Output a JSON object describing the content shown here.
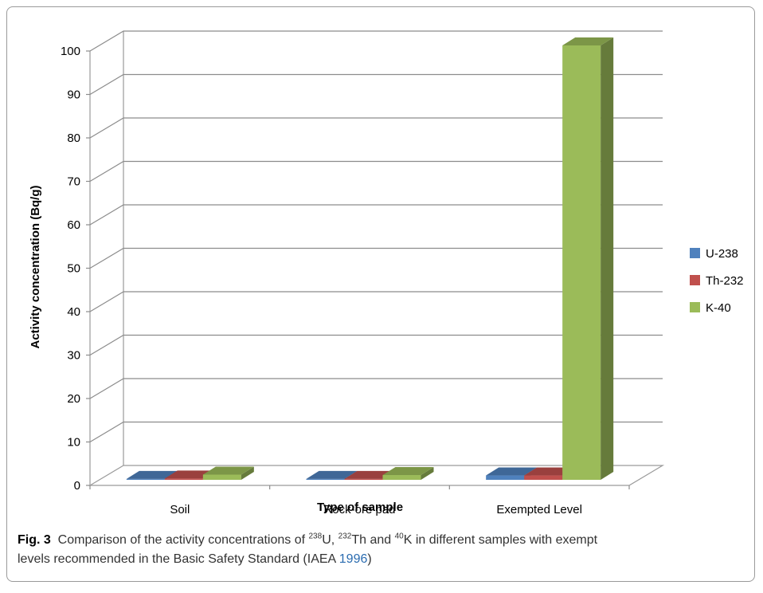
{
  "chart_data": {
    "type": "bar",
    "subtype": "3d-clustered-column",
    "categories": [
      "Soil",
      "Rock-ore pad",
      "Exempted Level"
    ],
    "series": [
      {
        "name": "U-238",
        "values": [
          0.2,
          0.2,
          1
        ],
        "color": "#4f81bd"
      },
      {
        "name": "Th-232",
        "values": [
          0.3,
          0.2,
          1
        ],
        "color": "#c0504d"
      },
      {
        "name": "K-40",
        "values": [
          1.2,
          1.1,
          100
        ],
        "color": "#9bbb59"
      }
    ],
    "xlabel": "Type of sample",
    "ylabel": "Activity concentration (Bq/g)",
    "ylim": [
      0,
      100
    ],
    "yticks": [
      "0",
      "10",
      "20",
      "30",
      "40",
      "50",
      "60",
      "70",
      "80",
      "90",
      "100"
    ],
    "grid": true,
    "legend_position": "right"
  },
  "caption": {
    "fig_label": "Fig. 3",
    "t1": "Comparison of the activity concentrations of",
    "sup_u": "238",
    "u": "U,",
    "sup_th": "232",
    "th": "Th and",
    "sup_k": "40",
    "t2": "K in different samples with exempt",
    "t3": "levels recommended in the Basic Safety Standard (IAEA",
    "cite": "1996",
    "close": ")"
  }
}
